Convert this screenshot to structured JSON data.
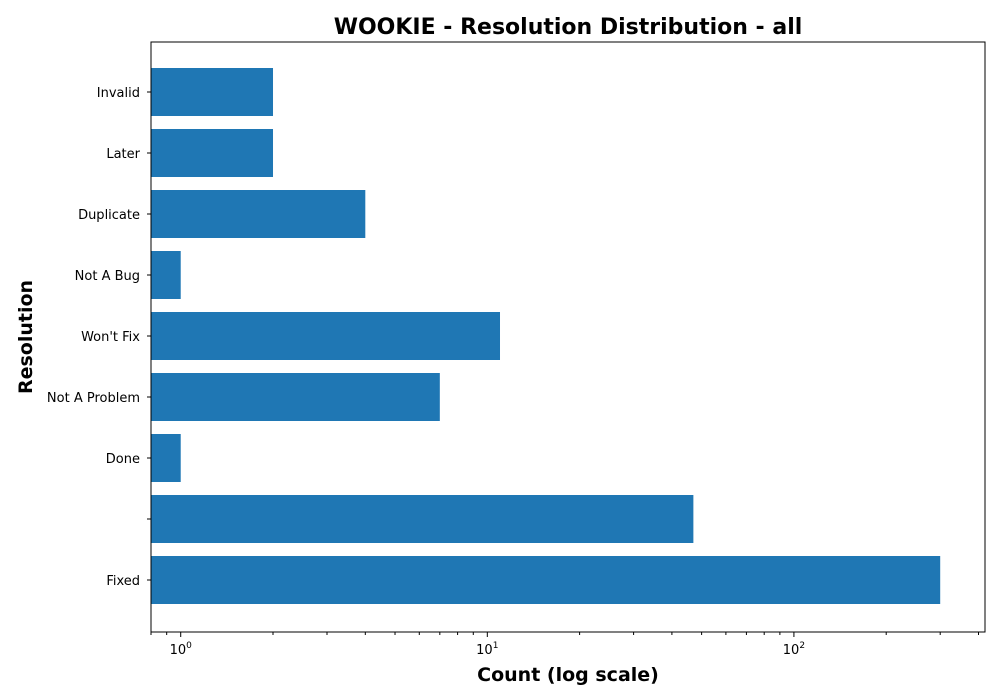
{
  "chart_data": {
    "type": "bar",
    "orientation": "horizontal",
    "title": "WOOKIE - Resolution Distribution - all",
    "xlabel": "Count (log scale)",
    "ylabel": "Resolution",
    "x_scale": "log",
    "xlim": [
      0.8,
      420
    ],
    "x_major_ticks": [
      {
        "base": "10",
        "exp": "0",
        "value": 1
      },
      {
        "base": "10",
        "exp": "1",
        "value": 10
      },
      {
        "base": "10",
        "exp": "2",
        "value": 100
      }
    ],
    "categories": [
      "Fixed",
      "",
      "Done",
      "Not A Problem",
      "Won't Fix",
      "Not A Bug",
      "Duplicate",
      "Later",
      "Invalid"
    ],
    "values": [
      300,
      47,
      1,
      7,
      11,
      1,
      4,
      2,
      2
    ],
    "bar_color": "#1f77b4",
    "grid": false,
    "legend": "none"
  }
}
